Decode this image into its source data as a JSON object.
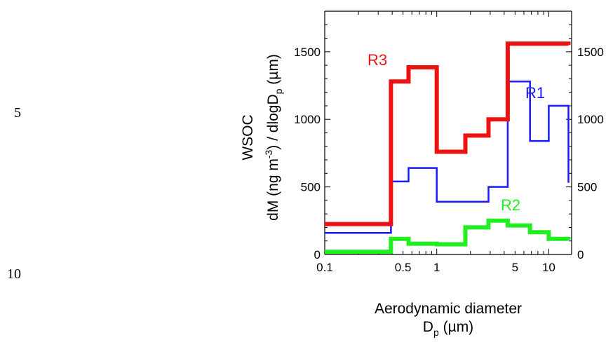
{
  "line_numbers": [
    "5",
    "10"
  ],
  "chart_data": {
    "type": "line",
    "title": "",
    "xscale": "log",
    "xlim": [
      0.1,
      16
    ],
    "ylim": [
      0,
      1800
    ],
    "x_ticks": [
      {
        "value": 0.1,
        "label": "0.1"
      },
      {
        "value": 0.5,
        "label": "0.5"
      },
      {
        "value": 1,
        "label": "1"
      },
      {
        "value": 5,
        "label": "5"
      },
      {
        "value": 10,
        "label": "10"
      }
    ],
    "y_ticks": [
      {
        "value": 0,
        "label": "0"
      },
      {
        "value": 500,
        "label": "500"
      },
      {
        "value": 1000,
        "label": "1000"
      },
      {
        "value": 1500,
        "label": "1500"
      }
    ],
    "ylabel_line1": "WSOC",
    "ylabel_line2": {
      "a": "dM (ng m",
      "a_sup": "-3",
      "b": ") / dlogD",
      "b_sub": "p",
      "c": " (µm)"
    },
    "xlabel_line1": "Aerodynamic diameter",
    "xlabel_line2": {
      "a": "D",
      "a_sub": "p",
      "b": " (µm)"
    },
    "series": [
      {
        "name": "R1",
        "color": "#1a1aff",
        "stroke": "thin",
        "edges": [
          0.1,
          0.39,
          0.56,
          1.0,
          1.8,
          2.9,
          4.3,
          6.8,
          10.0,
          15.0
        ],
        "values": [
          160,
          540,
          640,
          390,
          390,
          500,
          1280,
          840,
          1100,
          530
        ]
      },
      {
        "name": "R2",
        "color": "#22ee22",
        "stroke": "thick",
        "edges": [
          0.1,
          0.39,
          0.56,
          1.0,
          1.8,
          2.9,
          4.3,
          6.8,
          10.0,
          15.0
        ],
        "values": [
          20,
          115,
          80,
          75,
          200,
          250,
          215,
          165,
          115,
          110
        ]
      },
      {
        "name": "R3",
        "color": "#ee1111",
        "stroke": "thick",
        "edges": [
          0.1,
          0.39,
          0.56,
          1.0,
          1.8,
          2.9,
          4.3,
          15.0
        ],
        "values": [
          225,
          1280,
          1385,
          760,
          880,
          1000,
          1560,
          1550
        ]
      }
    ],
    "grid": false,
    "legend": "none"
  }
}
